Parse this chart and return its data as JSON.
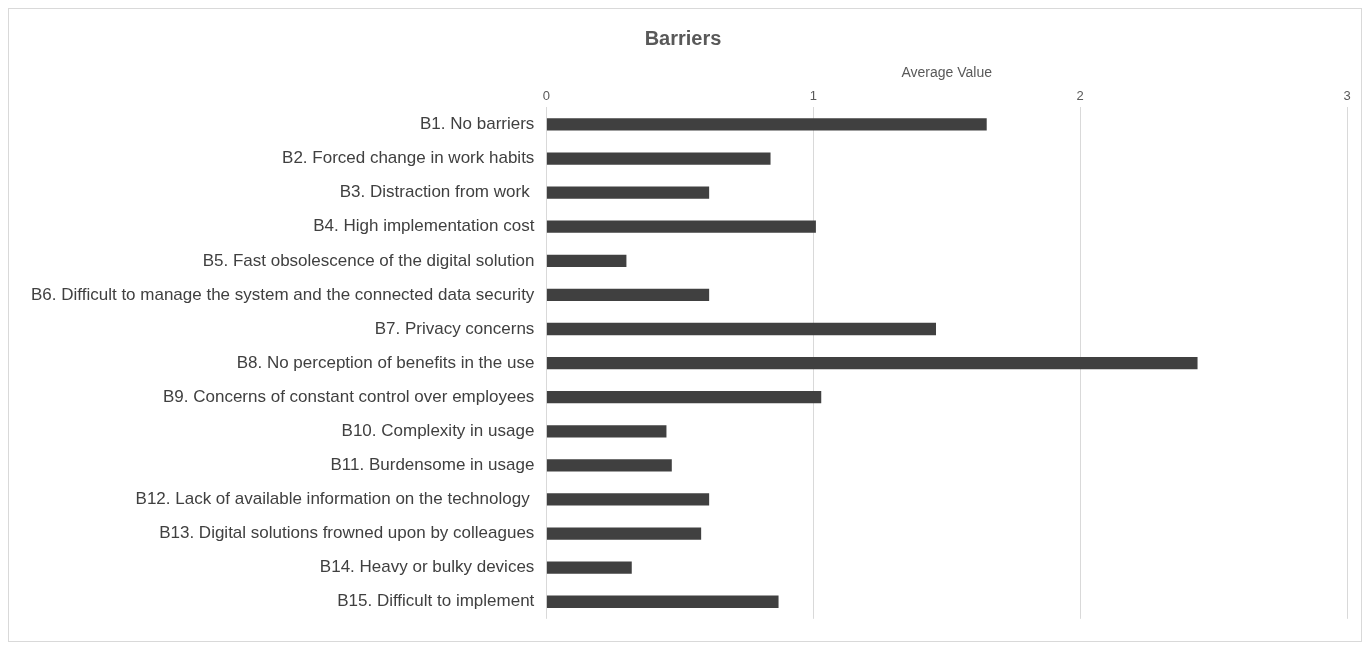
{
  "chart_data": {
    "type": "bar",
    "orientation": "horizontal",
    "title": "Barriers",
    "xlabel": "Average Value",
    "categories": [
      "B1. No barriers",
      "B2. Forced change in work habits",
      "B3. Distraction from work ",
      "B4. High implementation cost",
      "B5. Fast obsolescence of the digital solution",
      "B6. Difficult to manage the system and the connected data security",
      "B7. Privacy concerns",
      "B8. No perception of benefits in the use",
      "B9. Concerns of constant control over employees",
      "B10. Complexity in usage",
      "B11. Burdensome in usage",
      "B12. Lack of available information on the technology ",
      "B13. Digital solutions frowned upon by colleagues",
      "B14. Heavy or bulky devices",
      "B15. Difficult to implement"
    ],
    "values": [
      1.65,
      0.84,
      0.61,
      1.01,
      0.3,
      0.61,
      1.46,
      2.44,
      1.03,
      0.45,
      0.47,
      0.61,
      0.58,
      0.32,
      0.87
    ],
    "color": "#404040",
    "xlim": [
      0,
      3
    ],
    "xticks": [
      0,
      1,
      2,
      3
    ],
    "grid": "x",
    "legend": false
  }
}
